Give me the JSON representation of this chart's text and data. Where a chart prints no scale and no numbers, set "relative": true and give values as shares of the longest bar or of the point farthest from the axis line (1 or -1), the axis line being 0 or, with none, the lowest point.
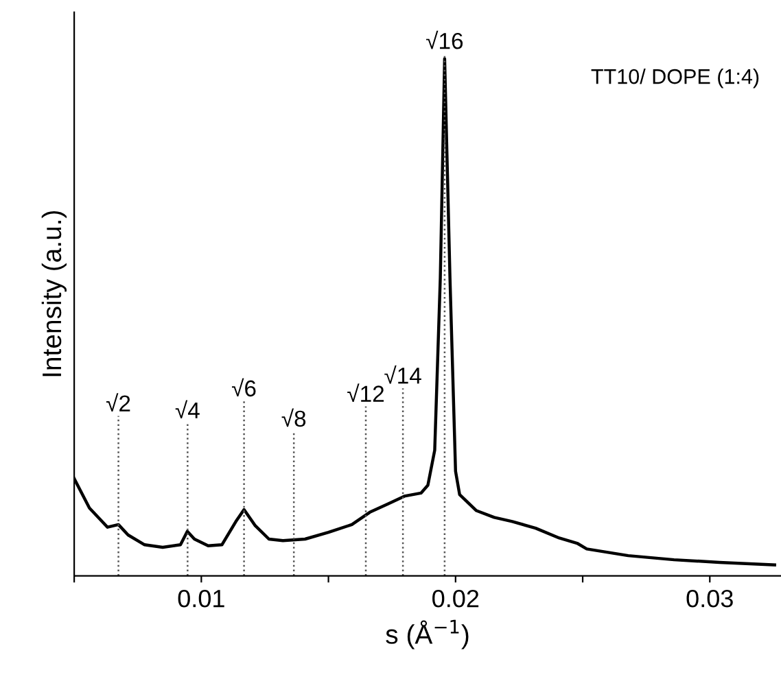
{
  "chart_data": {
    "type": "line",
    "relative": true,
    "xlabel": "s (Å$^{−1}$)",
    "ylabel": "Intensity (a.u.)",
    "xlim": [
      0.005,
      0.0328
    ],
    "xticks": [
      {
        "value": 0.005,
        "label": null
      },
      0.01,
      {
        "value": 0.015,
        "label": null
      },
      0.02,
      {
        "value": 0.025,
        "label": null
      },
      0.03
    ],
    "x": [
      0.005,
      0.0056,
      0.00631,
      0.00674,
      0.00712,
      0.00777,
      0.00848,
      0.00918,
      0.00945,
      0.00973,
      0.01027,
      0.01081,
      0.01136,
      0.01168,
      0.01212,
      0.01266,
      0.01321,
      0.01408,
      0.015,
      0.01592,
      0.01663,
      0.01734,
      0.01799,
      0.01864,
      0.01891,
      0.01918,
      0.0194,
      0.01957,
      0.01978,
      0.02,
      0.02016,
      0.02082,
      0.02152,
      0.02223,
      0.02315,
      0.02408,
      0.02478,
      0.02516,
      0.02679,
      0.02859,
      0.03038,
      0.03255
    ],
    "series": [
      {
        "color": "#000000",
        "values": [
          0.188,
          0.131,
          0.094,
          0.099,
          0.079,
          0.06,
          0.055,
          0.06,
          0.086,
          0.071,
          0.058,
          0.06,
          0.105,
          0.128,
          0.097,
          0.071,
          0.068,
          0.071,
          0.084,
          0.099,
          0.123,
          0.139,
          0.154,
          0.16,
          0.175,
          0.243,
          0.576,
          1.0,
          0.576,
          0.202,
          0.157,
          0.126,
          0.113,
          0.105,
          0.092,
          0.073,
          0.063,
          0.052,
          0.039,
          0.031,
          0.026,
          0.021
        ]
      }
    ],
    "ref_lines": [
      {
        "axis": "x",
        "value": 0.00674,
        "label": "√2",
        "line_style": "dotted"
      },
      {
        "axis": "x",
        "value": 0.00946,
        "label": "√4",
        "line_style": "dotted"
      },
      {
        "axis": "x",
        "value": 0.01168,
        "label": "√6",
        "line_style": "dotted"
      },
      {
        "axis": "x",
        "value": 0.01364,
        "label": "√8",
        "line_style": "dotted"
      },
      {
        "axis": "x",
        "value": 0.01647,
        "label": "√12",
        "line_style": "dotted"
      },
      {
        "axis": "x",
        "value": 0.01793,
        "label": "√14",
        "line_style": "dotted"
      },
      {
        "axis": "x",
        "value": 0.01957,
        "label": "√16",
        "line_style": "dotted"
      }
    ],
    "annotations": [
      "TT10/ DOPE (1:4)"
    ],
    "grid": false,
    "legend": false,
    "marker": "none",
    "line_style": "solid"
  }
}
